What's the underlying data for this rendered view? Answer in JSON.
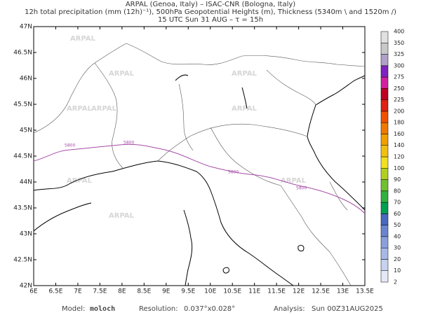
{
  "header": {
    "line1": "ARPAL (Genoa, Italy)  –  ISAC-CNR (Bologna, Italy)",
    "line2": "12h total precipitation (mm (12h)⁻¹), 500hPa Geopotential Heights (m), Thickness (5340m \\ and 1520m /)",
    "line3": "15 UTC Sun 31 AUG  –  τ = 15h"
  },
  "watermark": "ARPAL",
  "contour_label": "5800",
  "map": {
    "xlim": [
      6,
      13.5
    ],
    "ylim": [
      42,
      47
    ],
    "xticks": [
      {
        "value": 6,
        "label": "6E"
      },
      {
        "value": 6.5,
        "label": "6.5E"
      },
      {
        "value": 7,
        "label": "7E"
      },
      {
        "value": 7.5,
        "label": "7.5E"
      },
      {
        "value": 8,
        "label": "8E"
      },
      {
        "value": 8.5,
        "label": "8.5E"
      },
      {
        "value": 9,
        "label": "9E"
      },
      {
        "value": 9.5,
        "label": "9.5E"
      },
      {
        "value": 10,
        "label": "10E"
      },
      {
        "value": 10.5,
        "label": "10.5E"
      },
      {
        "value": 11,
        "label": "11E"
      },
      {
        "value": 11.5,
        "label": "11.5E"
      },
      {
        "value": 12,
        "label": "12E"
      },
      {
        "value": 12.5,
        "label": "12.5E"
      },
      {
        "value": 13,
        "label": "13E"
      },
      {
        "value": 13.5,
        "label": "13.5E"
      }
    ],
    "yticks": [
      {
        "value": 42,
        "label": "42N"
      },
      {
        "value": 42.5,
        "label": "42.5N"
      },
      {
        "value": 43,
        "label": "43N"
      },
      {
        "value": 43.5,
        "label": "43.5N"
      },
      {
        "value": 44,
        "label": "44N"
      },
      {
        "value": 44.5,
        "label": "44.5N"
      },
      {
        "value": 45,
        "label": "45N"
      },
      {
        "value": 45.5,
        "label": "45.5N"
      },
      {
        "value": 46,
        "label": "46N"
      },
      {
        "value": 46.5,
        "label": "46.5N"
      },
      {
        "value": 47,
        "label": "47N"
      }
    ]
  },
  "colorbar": {
    "levels": [
      2,
      10,
      20,
      30,
      40,
      50,
      60,
      70,
      80,
      90,
      100,
      120,
      140,
      160,
      180,
      200,
      225,
      250,
      275,
      300,
      325,
      350,
      400
    ],
    "colors": [
      "#e4e8f6",
      "#c6d2ef",
      "#a6b8e6",
      "#8aa0dc",
      "#6a84d0",
      "#4a68c0",
      "#00a050",
      "#30b040",
      "#70c030",
      "#b0d020",
      "#f0e020",
      "#f0c010",
      "#f0a000",
      "#f07800",
      "#f05000",
      "#e02010",
      "#c00020",
      "#d020a0",
      "#8020c0",
      "#b0a0c8",
      "#c8c8c8",
      "#e0e0e0"
    ]
  },
  "footer": {
    "model_label": "Model:",
    "model": "moloch",
    "resolution_label": "Resolution:",
    "resolution": "0.037°x0.028°",
    "analysis_label": "Analysis:",
    "analysis": "Sun 00Z31AUG2025"
  }
}
